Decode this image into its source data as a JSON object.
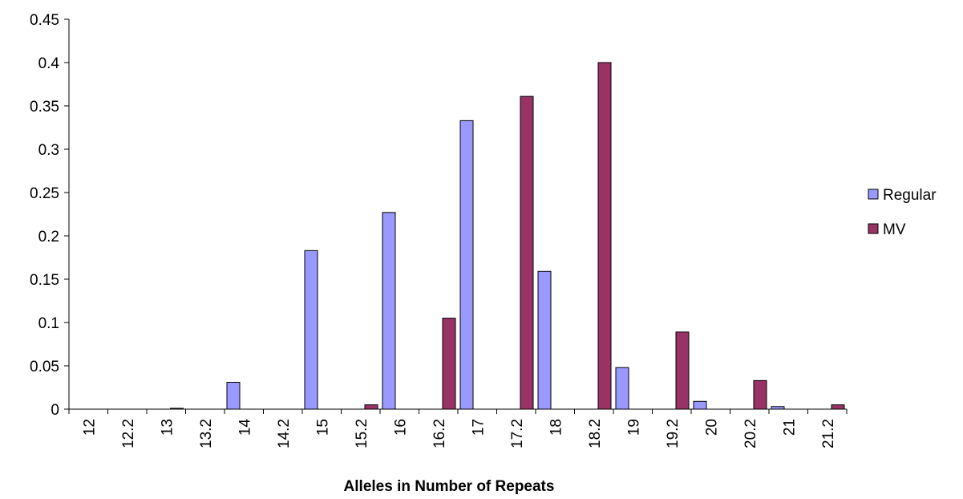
{
  "chart_data": {
    "type": "bar",
    "title": "",
    "xlabel": "Alleles in Number of Repeats",
    "ylabel": "",
    "ylim": [
      0,
      0.45
    ],
    "yticks": [
      "0",
      "0.05",
      "0.1",
      "0.15",
      "0.2",
      "0.25",
      "0.3",
      "0.35",
      "0.4",
      "0.45"
    ],
    "categories": [
      "12",
      "12.2",
      "13",
      "13.2",
      "14",
      "14.2",
      "15",
      "15.2",
      "16",
      "16.2",
      "17",
      "17.2",
      "18",
      "18.2",
      "19",
      "19.2",
      "20",
      "20.2",
      "21",
      "21.2"
    ],
    "series": [
      {
        "name": "Regular",
        "color": "#9999ff",
        "values": [
          0,
          0,
          0,
          0,
          0.031,
          0,
          0.183,
          0,
          0.227,
          0,
          0.333,
          0,
          0.159,
          0,
          0.048,
          0,
          0.009,
          0,
          0.003,
          0
        ]
      },
      {
        "name": "MV",
        "color": "#993366",
        "values": [
          0,
          0,
          0.001,
          0,
          0,
          0,
          0,
          0.005,
          0,
          0.105,
          0,
          0.361,
          0,
          0.4,
          0,
          0.089,
          0,
          0.033,
          0,
          0.005
        ]
      }
    ],
    "grid": false,
    "legend_position": "right"
  }
}
